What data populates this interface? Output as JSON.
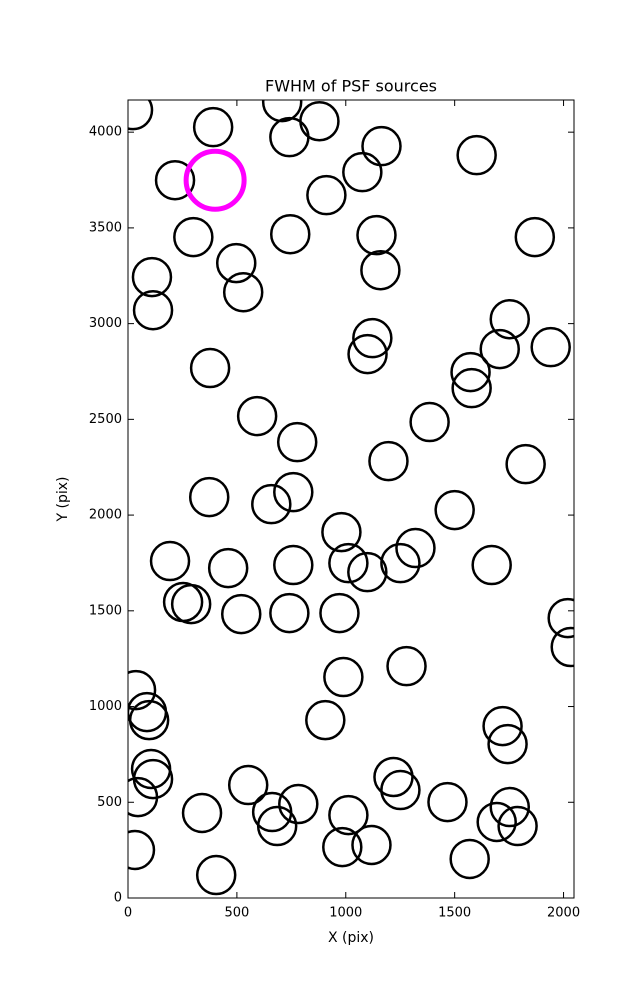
{
  "chart_data": {
    "type": "scatter",
    "title": "FWHM of PSF sources",
    "x_label": "X (pix)",
    "y_label": "Y (pix)",
    "xlim": [
      0,
      2048
    ],
    "ylim": [
      0,
      4168
    ],
    "xticks": [
      0,
      500,
      1000,
      1500,
      2000
    ],
    "yticks": [
      0,
      500,
      1000,
      1500,
      2000,
      2500,
      3000,
      3500,
      4000
    ],
    "series": [
      {
        "color": "#000000",
        "x": [
          23,
          391,
          708,
          741,
          879,
          1164,
          216,
          1076,
          911,
          1601,
          300,
          745,
          1141,
          1868,
          110,
          497,
          529,
          1159,
          115,
          1753,
          1122,
          1100,
          1707,
          1941,
          377,
          1573,
          1578,
          593,
          777,
          1385,
          1196,
          1826,
          373,
          759,
          658,
          1500,
          980,
          1320,
          193,
          460,
          759,
          1012,
          1099,
          1251,
          1670,
          253,
          290,
          520,
          741,
          971,
          2019,
          2033,
          1279,
          989,
          37,
          87,
          97,
          906,
          1720,
          1743,
          106,
          115,
          552,
          1219,
          1251,
          46,
          340,
          662,
          782,
          685,
          1012,
          1467,
          1753,
          1693,
          1789,
          32,
          984,
          1118,
          1569,
          405
        ],
        "y": [
          4115,
          4026,
          4157,
          3974,
          4057,
          3927,
          3749,
          3791,
          3671,
          3880,
          3452,
          3467,
          3462,
          3452,
          3243,
          3316,
          3164,
          3279,
          3070,
          3023,
          2924,
          2841,
          2867,
          2877,
          2768,
          2747,
          2663,
          2517,
          2381,
          2486,
          2282,
          2266,
          2094,
          2120,
          2057,
          2026,
          1911,
          1828,
          1760,
          1723,
          1739,
          1749,
          1702,
          1749,
          1739,
          1546,
          1535,
          1483,
          1488,
          1488,
          1462,
          1311,
          1211,
          1154,
          1086,
          971,
          929,
          929,
          898,
          804,
          674,
          621,
          590,
          632,
          564,
          527,
          444,
          449,
          491,
          376,
          433,
          501,
          475,
          397,
          376,
          251,
          266,
          277,
          204,
          120
        ]
      },
      {
        "color": "#ff00ff",
        "x": [
          400
        ],
        "y": [
          3749
        ]
      }
    ]
  }
}
